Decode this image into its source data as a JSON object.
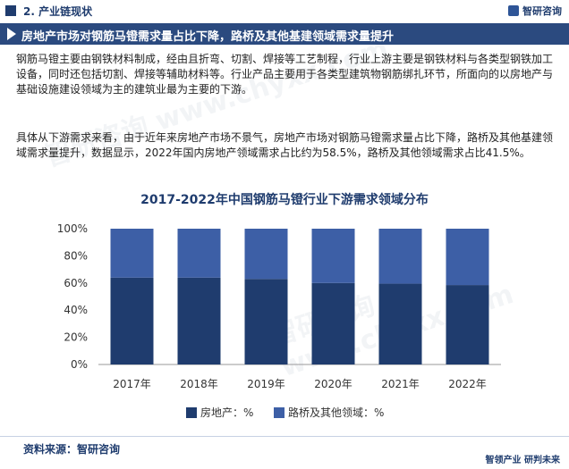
{
  "header": {
    "section_label": "2. 产业链现状",
    "brand": "智研咨询"
  },
  "banner": {
    "title": "房地产市场对钢筋马镫需求量占比下降，路桥及其他基建领域需求量提升"
  },
  "paragraphs": [
    "钢筋马镫主要由钢铁材料制成，经由且折弯、切割、焊接等工艺制程，行业上游主要是钢铁材料与各类型钢铁加工设备，同时还包括切割、焊接等辅助材料等。行业产品主要用于各类型建筑物钢筋绑扎环节，所面向的以房地产与基础设施建设领域为主的建筑业最为主要的下游。",
    "具体从下游需求来看，由于近年来房地产市场不景气，房地产市场对钢筋马镫需求量占比下降，路桥及其他基建领域需求量提升，数据显示，2022年国内房地产领域需求占比约为58.5%，路桥及其他领域需求占比41.5%。"
  ],
  "chart_data": {
    "type": "bar",
    "stacked": true,
    "title": "2017-2022年中国钢筋马镫行业下游需求领域分布",
    "categories": [
      "2017年",
      "2018年",
      "2019年",
      "2020年",
      "2021年",
      "2022年"
    ],
    "series": [
      {
        "name": "房地产：%",
        "values": [
          64,
          64,
          63,
          60,
          59.5,
          58.5
        ],
        "color": "#1f3c6e"
      },
      {
        "name": "路桥及其他领域：%",
        "values": [
          36,
          36,
          37,
          40,
          40.5,
          41.5
        ],
        "color": "#3d5fa6"
      }
    ],
    "y_ticks": [
      "0%",
      "20%",
      "40%",
      "60%",
      "80%",
      "100%"
    ],
    "ylim": [
      0,
      100
    ],
    "grid": false,
    "legend_position": "bottom"
  },
  "footer": {
    "source": "资料来源：智研咨询",
    "slogan": "智领产业  研判未来"
  },
  "watermark": "智研咨询 www.chyxx.com"
}
